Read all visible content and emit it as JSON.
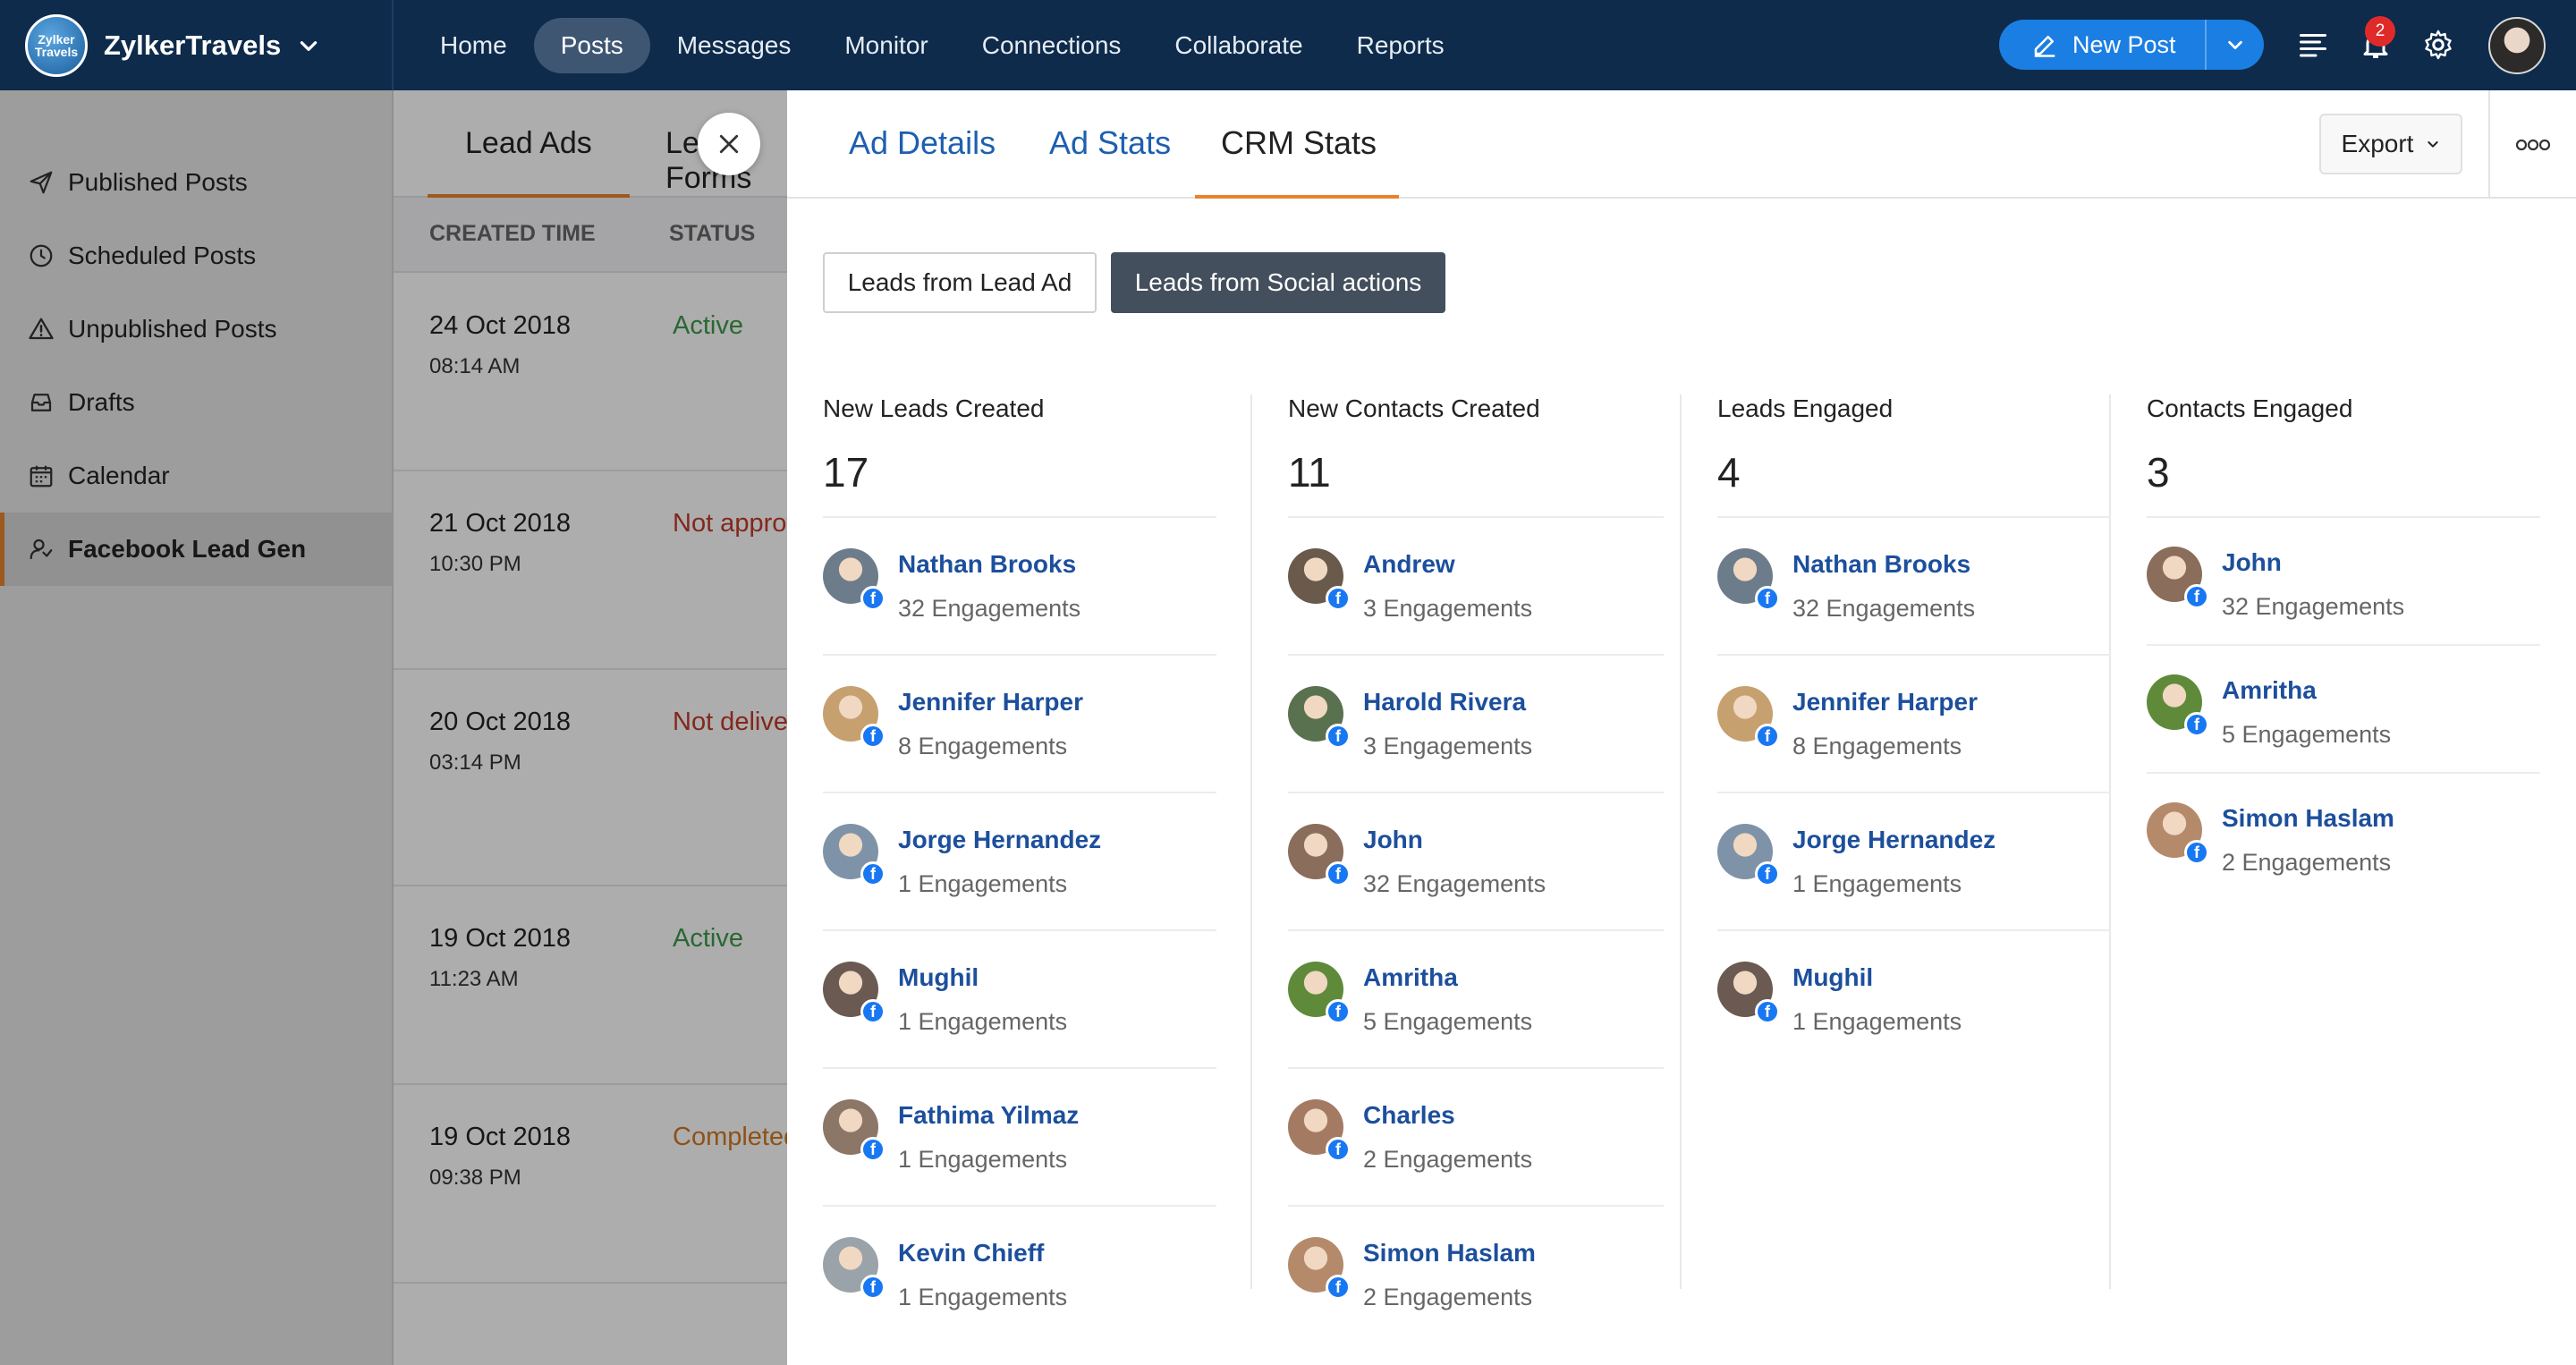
{
  "app": {
    "brand": "ZylkerTravels",
    "logo_text": "Zylker Travels"
  },
  "nav": [
    {
      "label": "Home",
      "active": false
    },
    {
      "label": "Posts",
      "active": true
    },
    {
      "label": "Messages",
      "active": false
    },
    {
      "label": "Monitor",
      "active": false
    },
    {
      "label": "Connections",
      "active": false
    },
    {
      "label": "Collaborate",
      "active": false
    },
    {
      "label": "Reports",
      "active": false
    }
  ],
  "header": {
    "new_post_label": "New Post",
    "notification_count": "2"
  },
  "sidebar": [
    {
      "label": "Published Posts",
      "icon": "send-icon"
    },
    {
      "label": "Scheduled Posts",
      "icon": "clock-icon"
    },
    {
      "label": "Unpublished Posts",
      "icon": "warning-icon"
    },
    {
      "label": "Drafts",
      "icon": "drafts-icon"
    },
    {
      "label": "Calendar",
      "icon": "calendar-icon"
    },
    {
      "label": "Facebook Lead Gen",
      "icon": "lead-gen-icon",
      "active": true
    }
  ],
  "background_list": {
    "tabs": [
      "Lead Ads",
      "Lead Forms"
    ],
    "headers": {
      "created": "CREATED TIME",
      "status": "STATUS"
    },
    "rows": [
      {
        "date": "24 Oct 2018",
        "time": "08:14 AM",
        "status": "Active",
        "color": "#3d9a4a"
      },
      {
        "date": "21 Oct 2018",
        "time": "10:30 PM",
        "status": "Not approved",
        "color": "#c23a2a"
      },
      {
        "date": "20 Oct 2018",
        "time": "03:14 PM",
        "status": "Not delivering",
        "color": "#c23a2a"
      },
      {
        "date": "19 Oct 2018",
        "time": "11:23 AM",
        "status": "Active",
        "color": "#3d9a4a"
      },
      {
        "date": "19 Oct 2018",
        "time": "09:38 PM",
        "status": "Completed",
        "color": "#d07a22"
      }
    ]
  },
  "panel": {
    "tabs": [
      "Ad Details",
      "Ad Stats",
      "CRM Stats"
    ],
    "active_tab": "CRM Stats",
    "export_label": "Export",
    "toggle": {
      "lead_ad": "Leads from Lead Ad",
      "social": "Leads from Social actions",
      "selected": "social"
    },
    "columns": [
      {
        "title": "New Leads Created",
        "count": "17",
        "people": [
          {
            "name": "Nathan Brooks",
            "engagements": "32 Engagements",
            "avatar": "#6d7c8a"
          },
          {
            "name": "Jennifer Harper",
            "engagements": "8 Engagements",
            "avatar": "#c6a06f"
          },
          {
            "name": "Jorge Hernandez",
            "engagements": "1 Engagements",
            "avatar": "#7f93a8"
          },
          {
            "name": "Mughil",
            "engagements": "1 Engagements",
            "avatar": "#6b5a52"
          },
          {
            "name": "Fathima Yilmaz",
            "engagements": "1 Engagements",
            "avatar": "#8b7668"
          },
          {
            "name": "Kevin Chieff",
            "engagements": "1 Engagements",
            "avatar": "#9aa3a9"
          }
        ]
      },
      {
        "title": "New Contacts Created",
        "count": "11",
        "people": [
          {
            "name": "Andrew",
            "engagements": "3 Engagements",
            "avatar": "#6a5a4c"
          },
          {
            "name": "Harold Rivera",
            "engagements": "3 Engagements",
            "avatar": "#5a7150"
          },
          {
            "name": "John",
            "engagements": "32 Engagements",
            "avatar": "#8a6d5a"
          },
          {
            "name": "Amritha",
            "engagements": "5 Engagements",
            "avatar": "#5f8a3a"
          },
          {
            "name": "Charles",
            "engagements": "2 Engagements",
            "avatar": "#a57a63"
          },
          {
            "name": "Simon Haslam",
            "engagements": "2 Engagements",
            "avatar": "#b48a6b"
          }
        ]
      },
      {
        "title": "Leads Engaged",
        "count": "4",
        "people": [
          {
            "name": "Nathan Brooks",
            "engagements": "32 Engagements",
            "avatar": "#6d7c8a"
          },
          {
            "name": "Jennifer Harper",
            "engagements": "8 Engagements",
            "avatar": "#c6a06f"
          },
          {
            "name": "Jorge Hernandez",
            "engagements": "1 Engagements",
            "avatar": "#7f93a8"
          },
          {
            "name": "Mughil",
            "engagements": "1 Engagements",
            "avatar": "#6b5a52"
          }
        ]
      },
      {
        "title": "Contacts Engaged",
        "count": "3",
        "people": [
          {
            "name": "John",
            "engagements": "32 Engagements",
            "avatar": "#8a6d5a"
          },
          {
            "name": "Amritha",
            "engagements": "5 Engagements",
            "avatar": "#5f8a3a"
          },
          {
            "name": "Simon Haslam",
            "engagements": "2 Engagements",
            "avatar": "#b48a6b"
          }
        ]
      }
    ]
  }
}
